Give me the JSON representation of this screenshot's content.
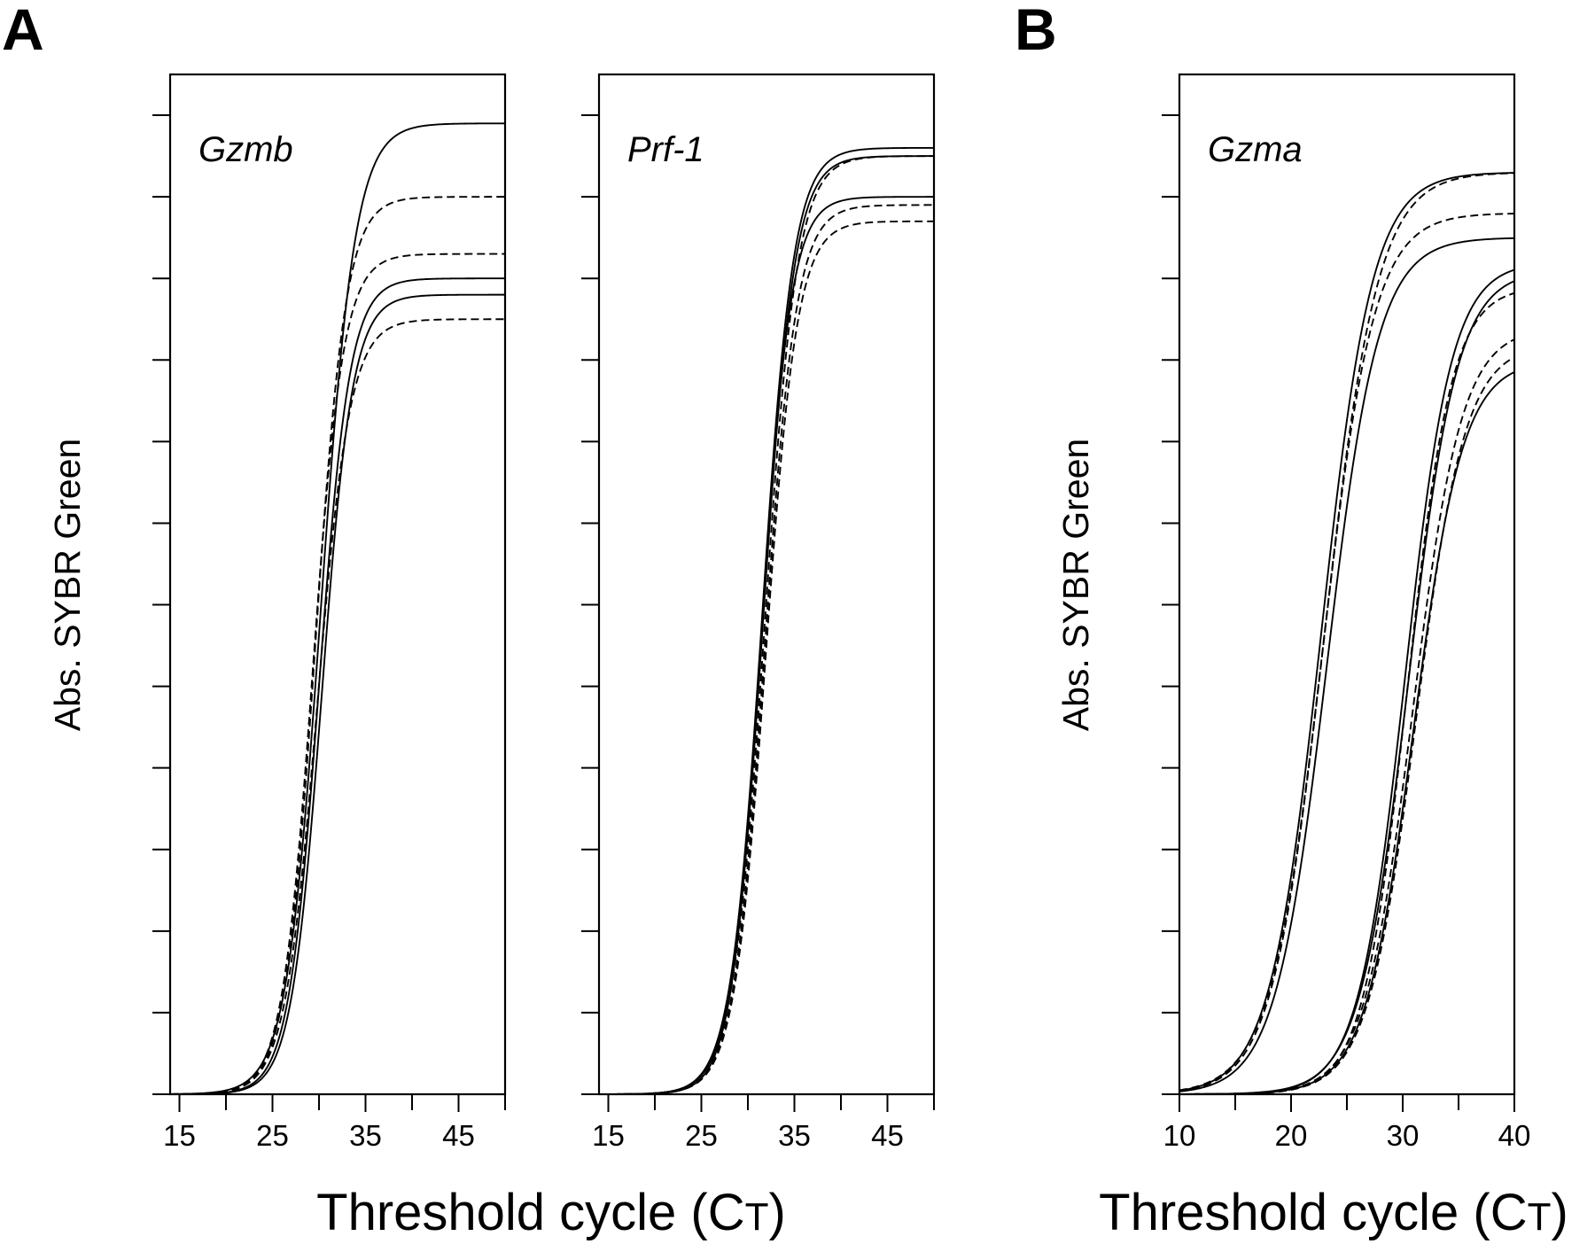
{
  "panels": {
    "a": {
      "letter": "A"
    },
    "b": {
      "letter": "B"
    }
  },
  "axis_titles": {
    "ylabel_a": "Abs. SYBR Green",
    "ylabel_b": "Abs. SYBR Green",
    "xlabel_a_prefix": "Threshold cycle (C",
    "xlabel_a_sub": "T",
    "xlabel_a_suffix": ")",
    "xlabel_b_prefix": "Threshold cycle (C",
    "xlabel_b_sub": "T",
    "xlabel_b_suffix": ")"
  },
  "chart_data": [
    {
      "type": "line",
      "panel": "A",
      "title": "Gzmb",
      "xlabel": "Threshold cycle (CT)",
      "ylabel": "Abs. SYBR Green",
      "xlim": [
        14,
        50
      ],
      "ylim": [
        0,
        12.5
      ],
      "xticks": [
        15,
        25,
        35,
        45
      ],
      "xtick_labels": [
        "15",
        "25",
        "35",
        "45"
      ],
      "yticks": [
        0,
        1,
        2,
        3,
        4,
        5,
        6,
        7,
        8,
        9,
        10,
        11,
        12
      ],
      "ytick_labels_shown": false,
      "grid": false,
      "legend": "none",
      "series": [
        {
          "style": "solid",
          "plateau": 11.9,
          "midpoint": 30.2,
          "slope": 1.85
        },
        {
          "style": "dashed",
          "plateau": 11.0,
          "midpoint": 29.6,
          "slope": 1.65
        },
        {
          "style": "dashed",
          "plateau": 10.3,
          "midpoint": 29.3,
          "slope": 1.65
        },
        {
          "style": "solid",
          "plateau": 10.0,
          "midpoint": 30.0,
          "slope": 1.65
        },
        {
          "style": "solid",
          "plateau": 9.8,
          "midpoint": 30.3,
          "slope": 1.65
        },
        {
          "style": "dashed",
          "plateau": 9.5,
          "midpoint": 29.8,
          "slope": 1.75
        }
      ]
    },
    {
      "type": "line",
      "panel": "A",
      "title": "Prf-1",
      "xlabel": "Threshold cycle (CT)",
      "ylabel": "Abs. SYBR Green",
      "xlim": [
        14,
        50
      ],
      "ylim": [
        0,
        12.5
      ],
      "xticks": [
        15,
        25,
        35,
        45
      ],
      "xtick_labels": [
        "15",
        "25",
        "35",
        "45"
      ],
      "yticks": [
        0,
        1,
        2,
        3,
        4,
        5,
        6,
        7,
        8,
        9,
        10,
        11,
        12
      ],
      "ytick_labels_shown": false,
      "grid": false,
      "legend": "none",
      "series": [
        {
          "style": "solid",
          "plateau": 11.6,
          "midpoint": 31.5,
          "slope": 1.7
        },
        {
          "style": "solid",
          "plateau": 11.5,
          "midpoint": 31.6,
          "slope": 1.7
        },
        {
          "style": "dashed",
          "plateau": 11.5,
          "midpoint": 31.8,
          "slope": 1.75
        },
        {
          "style": "solid",
          "plateau": 11.0,
          "midpoint": 31.4,
          "slope": 1.6
        },
        {
          "style": "dashed",
          "plateau": 10.9,
          "midpoint": 31.8,
          "slope": 1.7
        },
        {
          "style": "dashed",
          "plateau": 10.7,
          "midpoint": 31.9,
          "slope": 1.7
        }
      ]
    },
    {
      "type": "line",
      "panel": "B",
      "title": "Gzma",
      "xlabel": "Threshold cycle (CT)",
      "ylabel": "Abs. SYBR Green",
      "xlim": [
        10,
        40
      ],
      "ylim": [
        0,
        12.5
      ],
      "xticks": [
        10,
        20,
        30,
        40
      ],
      "xtick_labels": [
        "10",
        "20",
        "30",
        "40"
      ],
      "yticks": [
        0,
        1,
        2,
        3,
        4,
        5,
        6,
        7,
        8,
        9,
        10,
        11,
        12
      ],
      "ytick_labels_shown": false,
      "grid": false,
      "legend": "none",
      "series": [
        {
          "style": "solid",
          "plateau": 11.3,
          "midpoint": 22.7,
          "slope": 2.3
        },
        {
          "style": "dashed",
          "plateau": 11.3,
          "midpoint": 23.0,
          "slope": 2.4
        },
        {
          "style": "dashed",
          "plateau": 10.8,
          "midpoint": 22.8,
          "slope": 2.3
        },
        {
          "style": "solid",
          "plateau": 10.5,
          "midpoint": 23.2,
          "slope": 2.3
        },
        {
          "style": "solid",
          "plateau": 10.2,
          "midpoint": 30.2,
          "slope": 2.1
        },
        {
          "style": "dashed",
          "plateau": 9.9,
          "midpoint": 30.4,
          "slope": 2.0
        },
        {
          "style": "solid",
          "plateau": 10.1,
          "midpoint": 30.5,
          "slope": 2.2
        },
        {
          "style": "dashed",
          "plateau": 9.4,
          "midpoint": 30.9,
          "slope": 2.2
        },
        {
          "style": "dashed",
          "plateau": 9.2,
          "midpoint": 31.2,
          "slope": 2.2
        },
        {
          "style": "solid",
          "plateau": 9.0,
          "midpoint": 31.0,
          "slope": 2.2
        }
      ]
    }
  ]
}
